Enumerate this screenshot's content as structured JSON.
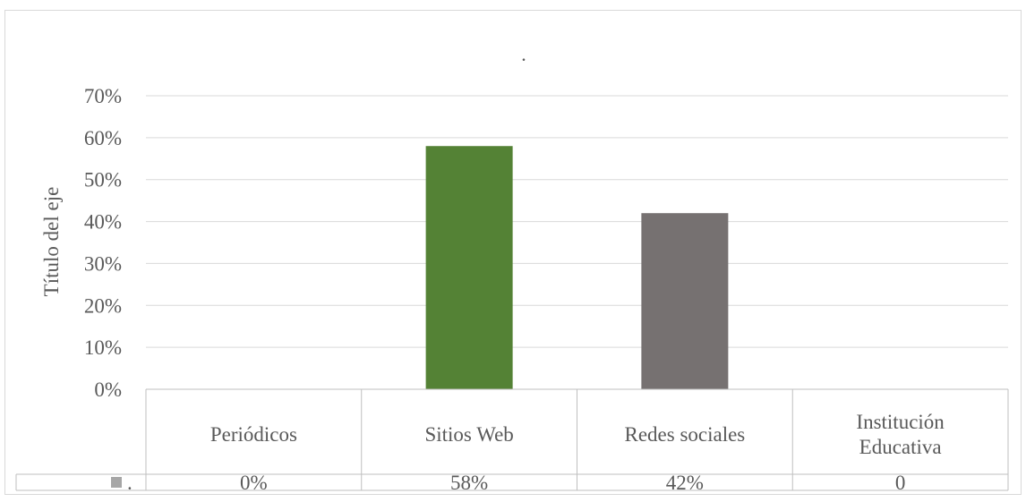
{
  "chart_data": {
    "type": "bar",
    "title": ".",
    "ylabel": "Título del eje",
    "xlabel": "",
    "categories": [
      "Periódicos",
      "Sitios Web",
      "Redes sociales",
      "Institución Educativa"
    ],
    "category_lines": [
      [
        "Periódicos"
      ],
      [
        "Sitios Web"
      ],
      [
        "Redes sociales"
      ],
      [
        "Institución",
        "Educativa"
      ]
    ],
    "values": [
      0,
      0.58,
      0.42,
      0
    ],
    "value_labels": [
      "0%",
      "58%",
      "42%",
      "0"
    ],
    "bar_colors": [
      "#548235",
      "#548235",
      "#767171",
      "#548235"
    ],
    "ylim": [
      0,
      0.7
    ],
    "yticks": [
      0,
      0.1,
      0.2,
      0.3,
      0.4,
      0.5,
      0.6,
      0.7
    ],
    "ytick_labels": [
      "0%",
      "10%",
      "20%",
      "30%",
      "40%",
      "50%",
      "60%",
      "70%"
    ],
    "grid": true,
    "data_table": true,
    "legend": {
      "name": ".",
      "key_color": "#a6a6a6",
      "placement": "table-left"
    }
  }
}
